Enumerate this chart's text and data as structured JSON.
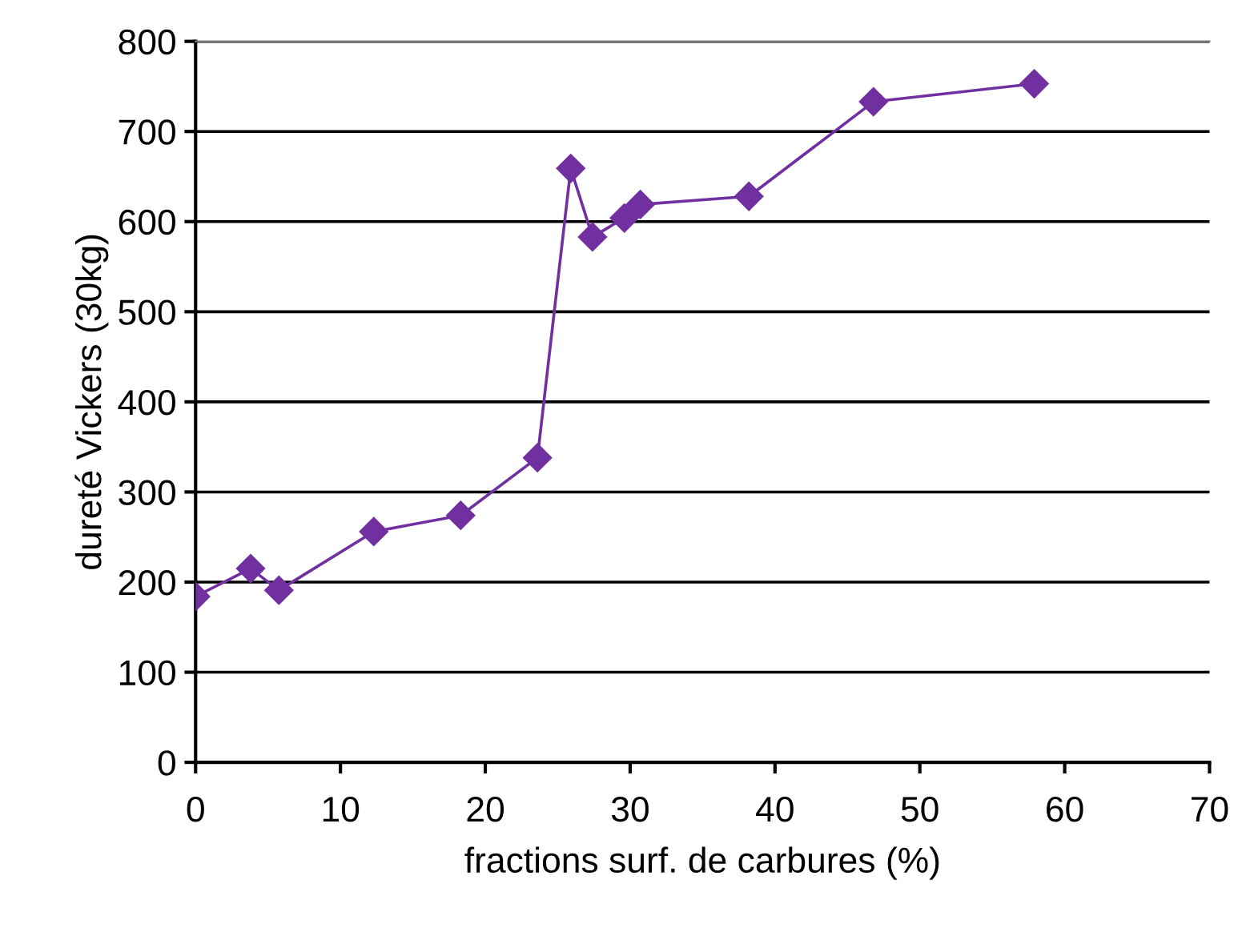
{
  "chart_data": {
    "type": "line",
    "xlabel": "fractions surf. de carbures (%)",
    "ylabel": "dureté Vickers (30kg)",
    "x": [
      0,
      3.8,
      5.75,
      12.3,
      18.3,
      23.6,
      25.9,
      27.4,
      29.6,
      30.7,
      38.2,
      46.8,
      57.9
    ],
    "series": [
      {
        "color": "#7030a0",
        "values": [
          184,
          215,
          191,
          256,
          274,
          338,
          659,
          583,
          604,
          619,
          628,
          733,
          753
        ]
      }
    ],
    "xlim": [
      0,
      70
    ],
    "xticks": [
      0,
      10,
      20,
      30,
      40,
      50,
      60,
      70
    ],
    "ylim": [
      0,
      800
    ],
    "yticks": [
      0,
      100,
      200,
      300,
      400,
      500,
      600,
      700,
      800
    ],
    "grid": "y",
    "marker": "diamond",
    "line_style": "solid",
    "legend": false
  }
}
